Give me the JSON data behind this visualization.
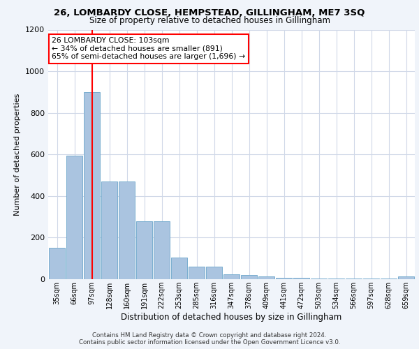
{
  "title": "26, LOMBARDY CLOSE, HEMPSTEAD, GILLINGHAM, ME7 3SQ",
  "subtitle": "Size of property relative to detached houses in Gillingham",
  "xlabel": "Distribution of detached houses by size in Gillingham",
  "ylabel": "Number of detached properties",
  "bar_labels": [
    "35sqm",
    "66sqm",
    "97sqm",
    "128sqm",
    "160sqm",
    "191sqm",
    "222sqm",
    "253sqm",
    "285sqm",
    "316sqm",
    "347sqm",
    "378sqm",
    "409sqm",
    "441sqm",
    "472sqm",
    "503sqm",
    "534sqm",
    "566sqm",
    "597sqm",
    "628sqm",
    "659sqm"
  ],
  "bar_values": [
    150,
    595,
    900,
    470,
    470,
    280,
    280,
    105,
    62,
    62,
    25,
    20,
    15,
    8,
    8,
    5,
    5,
    5,
    5,
    5,
    12
  ],
  "bar_color": "#aac4e0",
  "bar_edge_color": "#7aaed0",
  "vline_x": 2.0,
  "vline_color": "red",
  "ylim": [
    0,
    1200
  ],
  "yticks": [
    0,
    200,
    400,
    600,
    800,
    1000,
    1200
  ],
  "annotation_text": "26 LOMBARDY CLOSE: 103sqm\n← 34% of detached houses are smaller (891)\n65% of semi-detached houses are larger (1,696) →",
  "annotation_box_color": "red",
  "footer_text": "Contains HM Land Registry data © Crown copyright and database right 2024.\nContains public sector information licensed under the Open Government Licence v3.0.",
  "bg_color": "#f0f4fa",
  "plot_bg_color": "#ffffff",
  "grid_color": "#d0d8e8"
}
